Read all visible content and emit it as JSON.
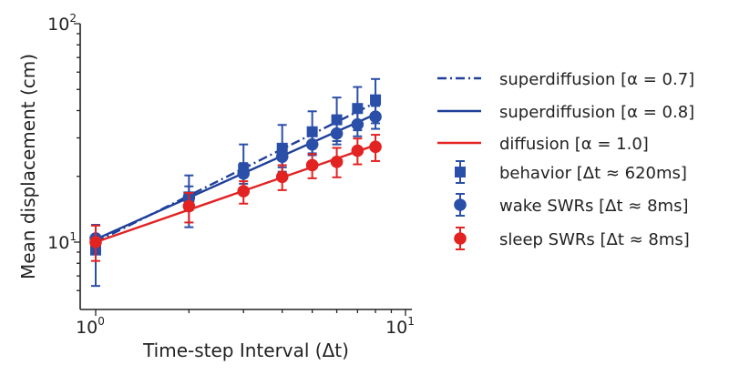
{
  "chart_data": {
    "type": "scatter",
    "xscale": "log",
    "yscale": "log",
    "xlabel": "Time-step Interval (Δt)",
    "ylabel": "Mean displacement (cm)",
    "xlim": [
      0.9,
      10
    ],
    "ylim": [
      5.6,
      100
    ],
    "xticks": [
      {
        "value": 1,
        "label": "10",
        "exp": "0"
      },
      {
        "value": 10,
        "label": "10",
        "exp": "1"
      }
    ],
    "yticks": [
      {
        "value": 10,
        "label": "10",
        "exp": "1"
      },
      {
        "value": 100,
        "label": "10",
        "exp": "2"
      }
    ],
    "lines": [
      {
        "name": "superdiffusion [α = 0.7]",
        "color": "#1f3f99",
        "style": "dashdot",
        "x": [
          1,
          8
        ],
        "y": [
          10.0,
          43.5
        ]
      },
      {
        "name": "superdiffusion [α = 0.8]",
        "color": "#1f3f99",
        "style": "solid",
        "x": [
          1,
          8
        ],
        "y": [
          10.3,
          38.5
        ]
      },
      {
        "name": "diffusion [α = 1.0]",
        "color": "#e32222",
        "style": "solid",
        "x": [
          1,
          8
        ],
        "y": [
          10.0,
          27.8
        ]
      }
    ],
    "series": [
      {
        "name": "behavior [Δt ≈ 620ms]",
        "color": "#2a4fa8",
        "marker": "square",
        "x": [
          1,
          2,
          3,
          4,
          5,
          6,
          7,
          8
        ],
        "y": [
          9.2,
          16.1,
          21.6,
          26.9,
          32.0,
          36.3,
          40.9,
          44.8
        ],
        "lower": [
          6.3,
          11.7,
          17.0,
          21.0,
          25.5,
          29.0,
          32.5,
          35.0
        ],
        "upper": [
          12.0,
          20.2,
          28.0,
          34.4,
          39.7,
          45.9,
          51.3,
          55.8
        ]
      },
      {
        "name": "wake SWRs [Δt ≈ 8ms]",
        "color": "#2a4fa8",
        "marker": "circle",
        "x": [
          1,
          2,
          3,
          4,
          5,
          6,
          7,
          8
        ],
        "y": [
          10.4,
          16.0,
          20.6,
          24.6,
          28.0,
          31.4,
          34.6,
          37.5
        ],
        "lower": [
          9.0,
          14.0,
          18.5,
          22.0,
          25.0,
          28.0,
          30.5,
          33.0
        ],
        "upper": [
          12.0,
          18.0,
          23.0,
          27.5,
          31.0,
          35.0,
          39.0,
          42.0
        ]
      },
      {
        "name": "sleep SWRs [Δt ≈ 8ms]",
        "color": "#e32222",
        "marker": "circle",
        "x": [
          1,
          2,
          3,
          4,
          5,
          6,
          7,
          8
        ],
        "y": [
          10.0,
          14.6,
          17.1,
          19.9,
          22.5,
          23.3,
          26.2,
          27.3
        ],
        "lower": [
          8.2,
          12.3,
          15.0,
          17.3,
          19.6,
          19.8,
          22.7,
          23.5
        ],
        "upper": [
          11.9,
          16.8,
          19.0,
          22.5,
          25.3,
          27.0,
          29.8,
          31.0
        ]
      }
    ],
    "legend_placement": "right",
    "grid": false
  }
}
